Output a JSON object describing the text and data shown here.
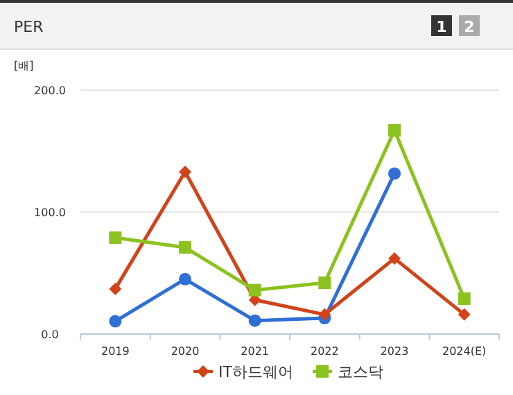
{
  "chart_data": {
    "type": "line",
    "title": "PER",
    "ylabel": "[배]",
    "annotations": [
      "1",
      "2"
    ],
    "categories": [
      "2019",
      "2020",
      "2021",
      "2022",
      "2023",
      "2024(E)"
    ],
    "series": [
      {
        "color": "#2f6fd6",
        "marker": "circle",
        "values": [
          10.5,
          45,
          11,
          13,
          131.6,
          null
        ]
      },
      {
        "name": "IT하드웨어",
        "color": "#d2431a",
        "marker": "diamond",
        "values": [
          37,
          133,
          28,
          16,
          62,
          16
        ]
      },
      {
        "name": "코스닥",
        "color": "#8cc21f",
        "marker": "square",
        "values": [
          79,
          71,
          36,
          42,
          167,
          29
        ]
      }
    ],
    "ylim": [
      0,
      200
    ],
    "yticks": [
      {
        "value": 0,
        "label": "0.0"
      },
      {
        "value": 100,
        "label": "100.0"
      },
      {
        "value": 200,
        "label": "200.0"
      }
    ],
    "grid": "y",
    "legend": "bottom"
  }
}
